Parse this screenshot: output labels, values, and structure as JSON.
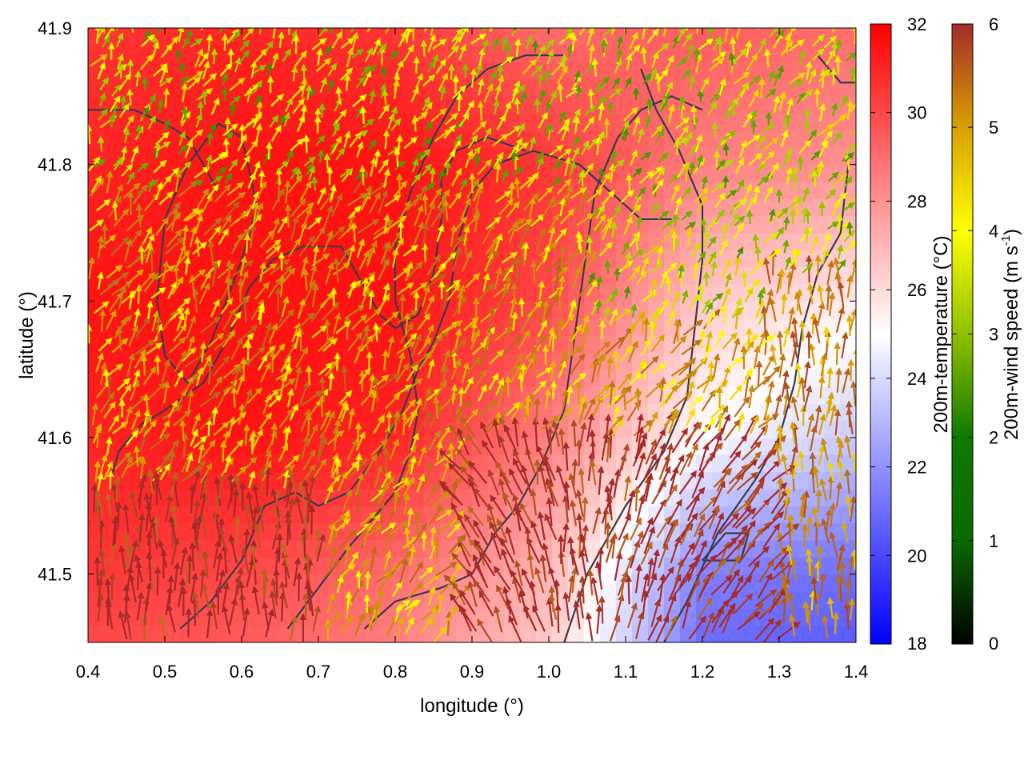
{
  "chart_data": {
    "type": "heatmap",
    "xlabel": "longitude (°)",
    "ylabel": "latitude (°)",
    "xlim": [
      0.4,
      1.4
    ],
    "ylim": [
      41.45,
      41.9
    ],
    "x_ticks": [
      0.4,
      0.5,
      0.6,
      0.7,
      0.8,
      0.9,
      1.0,
      1.1,
      1.2,
      1.3,
      1.4
    ],
    "x_tick_labels": [
      "0.4",
      "0.5",
      "0.6",
      "0.7",
      "0.8",
      "0.9",
      "1.0",
      "1.1",
      "1.2",
      "1.3",
      "1.4"
    ],
    "y_ticks": [
      41.5,
      41.6,
      41.7,
      41.8,
      41.9
    ],
    "y_tick_labels": [
      "41.5",
      "41.6",
      "41.7",
      "41.8",
      "41.9"
    ],
    "grid": false,
    "overlay": "wind vectors colored by speed, terrain contour lines",
    "temperature_colorbar": {
      "label": "200m-temperature (°C)",
      "range": [
        18,
        32
      ],
      "ticks": [
        18,
        20,
        22,
        24,
        26,
        28,
        30,
        32
      ],
      "tick_labels": [
        "18",
        "20",
        "22",
        "24",
        "26",
        "28",
        "30",
        "32"
      ],
      "colors": [
        "#0000ff",
        "#ffffff",
        "#ff0000"
      ]
    },
    "wind_colorbar": {
      "label": "200m-wind speed (m s-1)",
      "label_parts": [
        "200m-wind speed (m s",
        "-1",
        ")"
      ],
      "range": [
        0,
        6
      ],
      "ticks": [
        0,
        1,
        2,
        3,
        4,
        5,
        6
      ],
      "tick_labels": [
        "0",
        "1",
        "2",
        "3",
        "4",
        "5",
        "6"
      ],
      "colors": [
        "#000000",
        "#0a6a00",
        "#8fc000",
        "#ffff00",
        "#d7a000",
        "#b86a1c",
        "#a52a2a"
      ]
    },
    "temperature_field": {
      "lon": [
        0.4,
        0.6,
        0.8,
        1.0,
        1.2,
        1.4
      ],
      "lat": [
        41.9,
        41.8,
        41.7,
        41.6,
        41.5,
        41.45
      ],
      "values_c": [
        [
          30.5,
          31.0,
          30.5,
          29.0,
          29.5,
          29.0
        ],
        [
          31.0,
          31.5,
          31.5,
          30.5,
          28.5,
          28.0
        ],
        [
          31.5,
          31.5,
          31.5,
          30.0,
          26.5,
          25.5
        ],
        [
          31.0,
          31.5,
          31.0,
          28.5,
          25.0,
          23.5
        ],
        [
          30.5,
          30.0,
          29.0,
          27.0,
          21.5,
          21.0
        ],
        [
          30.0,
          29.5,
          28.5,
          26.5,
          21.0,
          20.5
        ]
      ]
    },
    "wind_speed_zones_ms": [
      {
        "region": "north and northeast",
        "speed": 2.5
      },
      {
        "region": "west and center",
        "speed": 4.0
      },
      {
        "region": "south and southeast",
        "speed": 6.0
      },
      {
        "region": "east edge",
        "speed": 4.5
      }
    ],
    "contours": [
      [
        [
          0.43,
          41.57
        ],
        [
          0.44,
          41.59
        ],
        [
          0.47,
          41.61
        ],
        [
          0.5,
          41.62
        ],
        [
          0.55,
          41.64
        ],
        [
          0.58,
          41.67
        ],
        [
          0.61,
          41.71
        ],
        [
          0.64,
          41.73
        ],
        [
          0.68,
          41.74
        ],
        [
          0.73,
          41.74
        ],
        [
          0.75,
          41.72
        ],
        [
          0.78,
          41.69
        ],
        [
          0.8,
          41.68
        ],
        [
          0.83,
          41.69
        ],
        [
          0.85,
          41.72
        ],
        [
          0.86,
          41.76
        ],
        [
          0.86,
          41.79
        ],
        [
          0.88,
          41.81
        ],
        [
          0.92,
          41.82
        ],
        [
          0.97,
          41.81
        ]
      ],
      [
        [
          0.5,
          41.66
        ],
        [
          0.49,
          41.7
        ],
        [
          0.5,
          41.76
        ],
        [
          0.53,
          41.8
        ],
        [
          0.57,
          41.83
        ],
        [
          0.6,
          41.82
        ],
        [
          0.62,
          41.77
        ],
        [
          0.6,
          41.73
        ],
        [
          0.56,
          41.67
        ],
        [
          0.53,
          41.64
        ],
        [
          0.5,
          41.66
        ]
      ],
      [
        [
          0.52,
          41.46
        ],
        [
          0.56,
          41.48
        ],
        [
          0.6,
          41.51
        ],
        [
          0.63,
          41.55
        ],
        [
          0.67,
          41.56
        ],
        [
          0.7,
          41.55
        ],
        [
          0.74,
          41.56
        ],
        [
          0.78,
          41.59
        ],
        [
          0.81,
          41.62
        ],
        [
          0.83,
          41.65
        ],
        [
          0.85,
          41.67
        ],
        [
          0.87,
          41.7
        ],
        [
          0.88,
          41.74
        ],
        [
          0.9,
          41.78
        ],
        [
          0.93,
          41.8
        ],
        [
          0.98,
          41.81
        ],
        [
          1.04,
          41.8
        ],
        [
          1.08,
          41.78
        ],
        [
          1.12,
          41.76
        ],
        [
          1.16,
          41.76
        ]
      ],
      [
        [
          0.66,
          41.46
        ],
        [
          0.7,
          41.49
        ],
        [
          0.74,
          41.52
        ],
        [
          0.77,
          41.54
        ],
        [
          0.8,
          41.56
        ],
        [
          0.82,
          41.59
        ],
        [
          0.83,
          41.62
        ],
        [
          0.82,
          41.66
        ],
        [
          0.8,
          41.7
        ],
        [
          0.8,
          41.74
        ],
        [
          0.82,
          41.78
        ],
        [
          0.85,
          41.82
        ],
        [
          0.88,
          41.85
        ],
        [
          0.92,
          41.87
        ],
        [
          0.97,
          41.88
        ],
        [
          1.02,
          41.88
        ]
      ],
      [
        [
          0.76,
          41.46
        ],
        [
          0.8,
          41.48
        ],
        [
          0.86,
          41.49
        ],
        [
          0.9,
          41.5
        ],
        [
          0.93,
          41.53
        ],
        [
          0.96,
          41.55
        ],
        [
          0.99,
          41.58
        ],
        [
          1.02,
          41.62
        ],
        [
          1.03,
          41.66
        ],
        [
          1.04,
          41.7
        ],
        [
          1.05,
          41.74
        ],
        [
          1.06,
          41.78
        ],
        [
          1.09,
          41.82
        ],
        [
          1.12,
          41.84
        ],
        [
          1.16,
          41.85
        ],
        [
          1.2,
          41.84
        ]
      ],
      [
        [
          1.02,
          41.45
        ],
        [
          1.05,
          41.5
        ],
        [
          1.1,
          41.55
        ],
        [
          1.15,
          41.59
        ],
        [
          1.18,
          41.63
        ],
        [
          1.19,
          41.68
        ],
        [
          1.2,
          41.73
        ],
        [
          1.2,
          41.77
        ],
        [
          1.17,
          41.81
        ],
        [
          1.14,
          41.84
        ],
        [
          1.12,
          41.87
        ]
      ],
      [
        [
          1.15,
          41.45
        ],
        [
          1.18,
          41.48
        ],
        [
          1.22,
          41.53
        ],
        [
          1.27,
          41.57
        ],
        [
          1.3,
          41.6
        ],
        [
          1.32,
          41.64
        ],
        [
          1.33,
          41.68
        ],
        [
          1.35,
          41.72
        ],
        [
          1.38,
          41.75
        ],
        [
          1.39,
          41.8
        ]
      ],
      [
        [
          1.2,
          41.51
        ],
        [
          1.23,
          41.53
        ],
        [
          1.26,
          41.53
        ],
        [
          1.25,
          41.51
        ],
        [
          1.2,
          41.51
        ]
      ],
      [
        [
          1.35,
          41.88
        ],
        [
          1.38,
          41.86
        ],
        [
          1.4,
          41.86
        ]
      ],
      [
        [
          0.4,
          41.84
        ],
        [
          0.46,
          41.84
        ],
        [
          0.5,
          41.83
        ],
        [
          0.53,
          41.82
        ],
        [
          0.55,
          41.8
        ],
        [
          0.57,
          41.78
        ]
      ]
    ]
  }
}
